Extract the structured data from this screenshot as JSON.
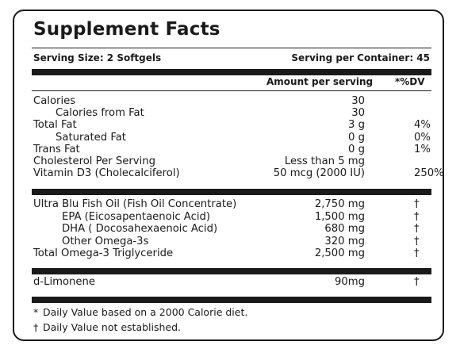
{
  "title": "Supplement Facts",
  "serving_size": "Serving Size: 2 Softgels",
  "servings_per_container": "Serving per Container: 45",
  "header": {
    "amount": "Amount per serving",
    "dv": "*%DV"
  },
  "nutrients": [
    {
      "label": "Calories",
      "amount": "30",
      "dv": "",
      "indent": 0
    },
    {
      "label": "Calories from Fat",
      "amount": "30",
      "dv": "",
      "indent": 1
    },
    {
      "label": "Total Fat",
      "amount": "3 g",
      "dv": "4%",
      "indent": 0
    },
    {
      "label": "Saturated Fat",
      "amount": "0 g",
      "dv": "0%",
      "indent": 1
    },
    {
      "label": "Trans Fat",
      "amount": "0 g",
      "dv": "1%",
      "indent": 0
    },
    {
      "label": "Cholesterol Per Serving",
      "amount": "Less than 5 mg",
      "dv": "",
      "indent": 0
    },
    {
      "label": "Vitamin D3 (Cholecalciferol)",
      "amount": "50 mcg (2000 IU)",
      "dv": "250%",
      "indent": 0
    }
  ],
  "oils": [
    {
      "label": "Ultra Blu Fish Oil (Fish Oil Concentrate)",
      "amount": "2,750 mg",
      "dv": "†",
      "indent": 0
    },
    {
      "label": "EPA (Eicosapentaenoic Acid)",
      "amount": "1,500 mg",
      "dv": "†",
      "indent": 2
    },
    {
      "label": "DHA ( Docosahexaenoic Acid)",
      "amount": "680 mg",
      "dv": "†",
      "indent": 2
    },
    {
      "label": "Other Omega-3s",
      "amount": "320 mg",
      "dv": "†",
      "indent": 2
    },
    {
      "label": "Total Omega-3 Triglyceride",
      "amount": "2,500 mg",
      "dv": "†",
      "indent": 0
    }
  ],
  "other": [
    {
      "label": "d-Limonene",
      "amount": "90mg",
      "dv": "†",
      "indent": 0
    }
  ],
  "footnotes": [
    {
      "symbol": "*",
      "text": "Daily Value based on a 2000 Calorie diet."
    },
    {
      "symbol": "†",
      "text": "Daily Value not established."
    }
  ]
}
